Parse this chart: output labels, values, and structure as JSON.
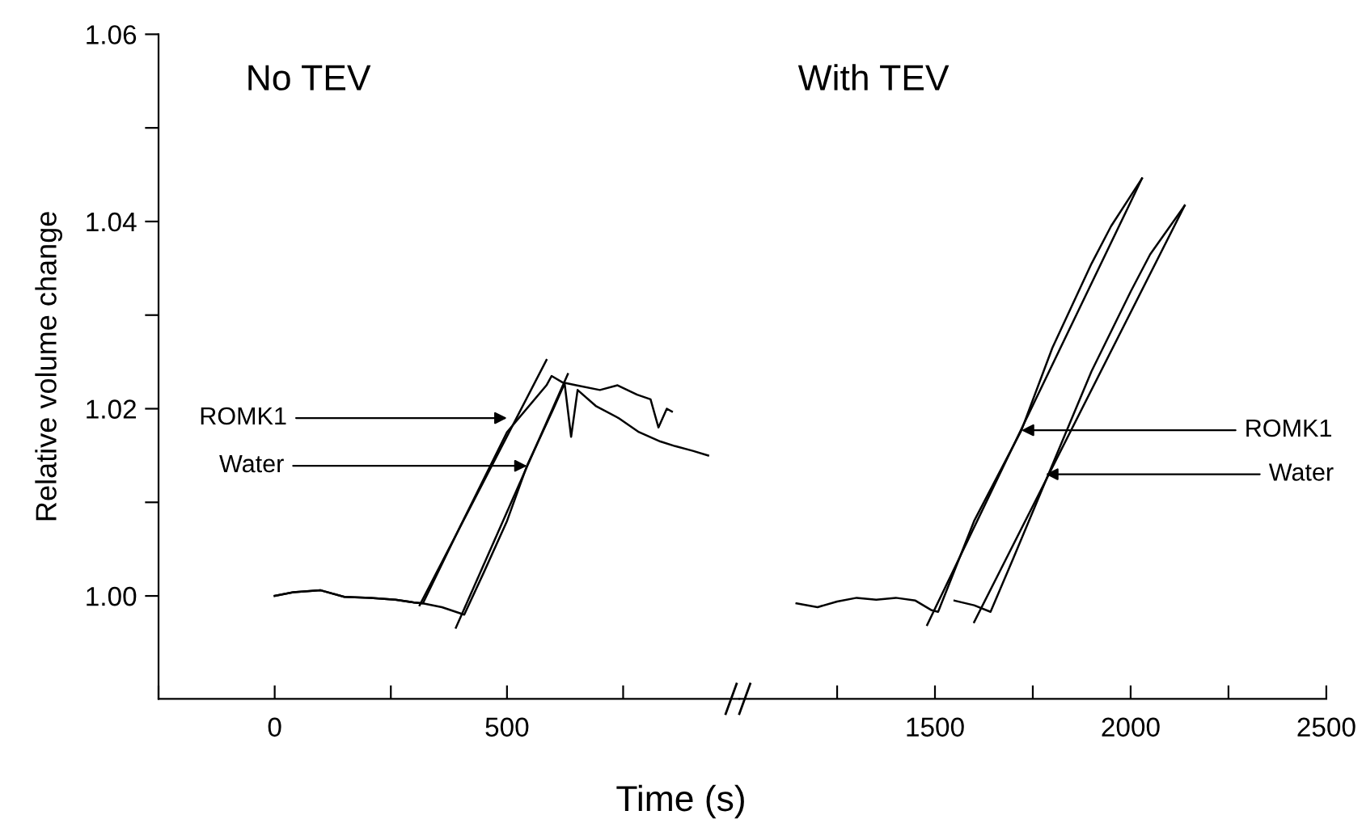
{
  "chart_data": [
    {
      "type": "line",
      "xlabel": "Time (s)",
      "ylabel": "Relative volume change",
      "xlim": [
        -250,
        1000
      ],
      "ylim": [
        0.989,
        1.06
      ],
      "xticks": [
        {
          "value": -250,
          "label": null
        },
        0,
        {
          "value": 250,
          "label": null
        },
        500,
        {
          "value": 750,
          "label": null
        }
      ],
      "yticks": [
        {
          "value": 1.0,
          "label": "1.00"
        },
        {
          "value": 1.01,
          "label": null
        },
        {
          "value": 1.02,
          "label": "1.02"
        },
        {
          "value": 1.03,
          "label": null
        },
        {
          "value": 1.04,
          "label": "1.04"
        },
        {
          "value": 1.05,
          "label": null
        },
        {
          "value": 1.06,
          "label": "1.06"
        }
      ],
      "grid": false,
      "legend": false,
      "marker": "none",
      "line_style": "solid",
      "series": [
        {
          "color": "#000000",
          "x": [
            0,
            40,
            99,
            150,
            206,
            260,
            300,
            319,
            400,
            500,
            585,
            596,
            620,
            649,
            700,
            738,
            780,
            809,
            826,
            844,
            855
          ],
          "values": [
            1.0,
            1.0004,
            1.0006,
            0.9999,
            0.9998,
            0.9996,
            0.9993,
            0.9992,
            1.0075,
            1.0175,
            1.0225,
            1.0235,
            1.0228,
            1.0225,
            1.022,
            1.0225,
            1.0215,
            1.021,
            1.018,
            1.02,
            1.0197
          ]
        },
        {
          "color": "#000000",
          "x": [
            0,
            40,
            99,
            150,
            206,
            260,
            300,
            319,
            360,
            408,
            450,
            500,
            543,
            600,
            624,
            638,
            652,
            691,
            740,
            784,
            830,
            862,
            900,
            933
          ],
          "values": [
            1.0,
            1.0004,
            1.0006,
            0.9999,
            0.9998,
            0.9996,
            0.9993,
            0.9992,
            0.9988,
            0.998,
            1.0025,
            1.008,
            1.0139,
            1.02,
            1.0227,
            1.017,
            1.022,
            1.0203,
            1.019,
            1.0175,
            1.0165,
            1.016,
            1.0155,
            1.015
          ]
        },
        {
          "color": "#000000",
          "x": [
            312,
            585
          ],
          "values": [
            0.999,
            1.0252
          ]
        },
        {
          "color": "#000000",
          "x": [
            390,
            631
          ],
          "values": [
            0.9966,
            1.0237
          ]
        }
      ],
      "annotations": [
        "No TEV",
        {
          "text": "ROMK1",
          "x": 500,
          "y": 1.019
        },
        {
          "text": "Water",
          "x": 543,
          "y": 1.0139
        }
      ]
    },
    {
      "type": "line",
      "tick_labels": "x",
      "xlim": [
        1000,
        2500
      ],
      "ylim": [
        0.989,
        1.06
      ],
      "xticks": [
        {
          "value": 1250,
          "label": null
        },
        1500,
        {
          "value": 1750,
          "label": null
        },
        2000,
        {
          "value": 2250,
          "label": null
        },
        2500
      ],
      "grid": false,
      "legend": false,
      "marker": "none",
      "line_style": "solid",
      "series": [
        {
          "color": "#000000",
          "x": [
            1146,
            1200,
            1250,
            1300,
            1350,
            1400,
            1450,
            1490,
            1508,
            1600,
            1721,
            1800,
            1900,
            1950,
            2029
          ],
          "values": [
            0.9992,
            0.9988,
            0.9994,
            0.9998,
            0.9996,
            0.9998,
            0.9995,
            0.9985,
            0.9983,
            1.008,
            1.0177,
            1.0265,
            1.0355,
            1.0395,
            1.0446
          ]
        },
        {
          "color": "#000000",
          "x": [
            1550,
            1600,
            1642,
            1700,
            1792,
            1900,
            2000,
            2050,
            2138
          ],
          "values": [
            0.9995,
            0.999,
            0.9983,
            1.004,
            1.0132,
            1.024,
            1.0325,
            1.0365,
            1.0417
          ]
        },
        {
          "color": "#000000",
          "x": [
            1480,
            2029
          ],
          "values": [
            0.9969,
            1.0446
          ]
        },
        {
          "color": "#000000",
          "x": [
            1600,
            2138
          ],
          "values": [
            0.9972,
            1.0417
          ]
        }
      ],
      "annotations": [
        "With TEV",
        {
          "text": "ROMK1",
          "x": 1721,
          "y": 1.0177
        },
        {
          "text": "Water",
          "x": 1783,
          "y": 1.013
        }
      ]
    }
  ]
}
